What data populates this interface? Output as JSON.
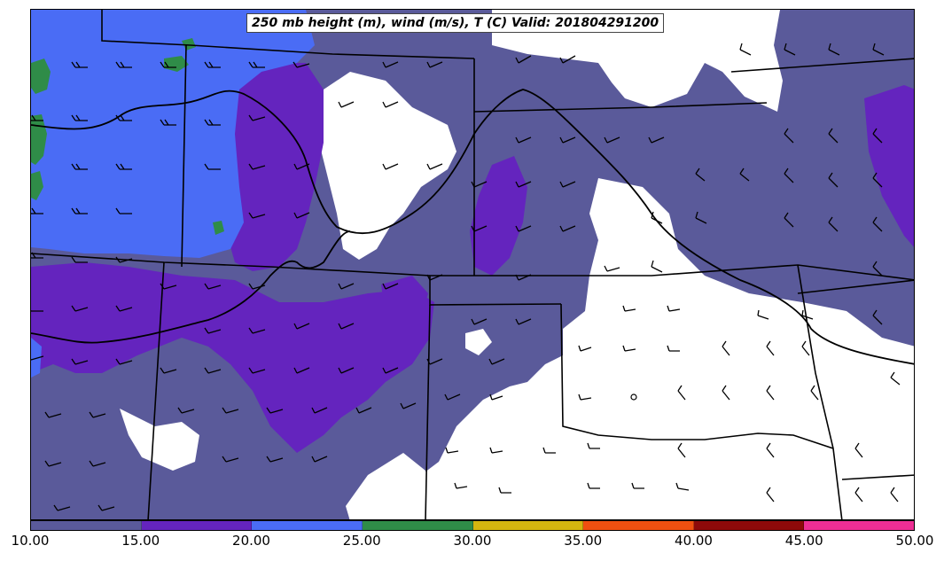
{
  "title": "250 mb height (m), wind (m/s), T (C) Valid: 201804291200",
  "colorbar": {
    "colors": [
      "#5a5a9a",
      "#6424be",
      "#4a6cf5",
      "#2f8c48",
      "#d4b60f",
      "#f05010",
      "#8e0a0a",
      "#ee2e94"
    ],
    "ticks": [
      "10.00",
      "15.00",
      "20.00",
      "25.00",
      "30.00",
      "35.00",
      "40.00",
      "45.00",
      "50.00"
    ]
  },
  "icons": {
    "wind_barb": "wind-barb-icon"
  }
}
